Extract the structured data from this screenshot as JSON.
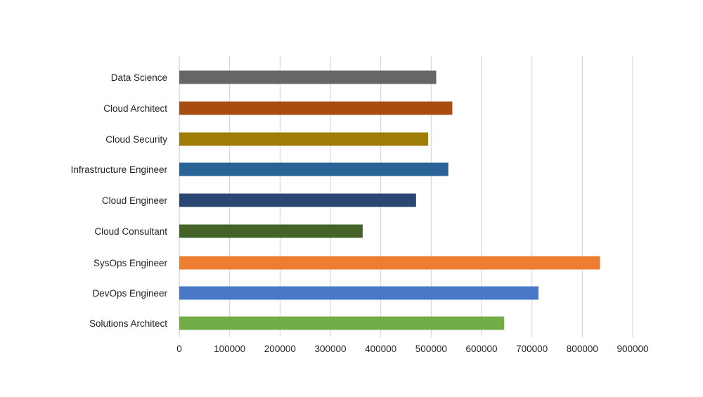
{
  "chart_data": {
    "type": "bar",
    "orientation": "horizontal",
    "title": "",
    "xlabel": "",
    "ylabel": "",
    "xlim": [
      0,
      900000
    ],
    "x_ticks": [
      0,
      100000,
      200000,
      300000,
      400000,
      500000,
      600000,
      700000,
      800000,
      900000
    ],
    "x_tick_labels": [
      "0",
      "100000",
      "200000",
      "300000",
      "400000",
      "500000",
      "600000",
      "700000",
      "800000",
      "900000"
    ],
    "grid": "vertical",
    "legend": "none",
    "categories": [
      "Data Science",
      "Cloud Architect",
      "Cloud Security",
      "Infrastructure Engineer",
      "Cloud Engineer",
      "Cloud Consultant",
      "SysOps Engineer",
      "DevOps Engineer",
      "Solutions Architect"
    ],
    "values": [
      510000,
      542000,
      494000,
      534000,
      470000,
      364000,
      835000,
      713000,
      645000
    ],
    "colors": [
      "#666666",
      "#a84c10",
      "#9e7c05",
      "#2a6496",
      "#2a4673",
      "#436328",
      "#ed7d31",
      "#4a78c8",
      "#71ad47"
    ]
  }
}
